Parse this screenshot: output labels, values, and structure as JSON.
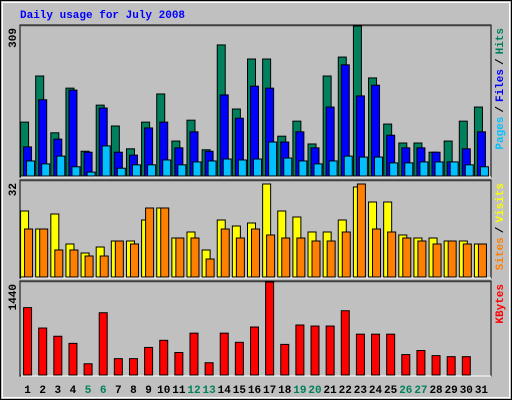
{
  "chart_data": {
    "type": "bar",
    "title": "Daily usage for July 2008",
    "categories": [
      "1",
      "2",
      "3",
      "4",
      "5",
      "6",
      "7",
      "8",
      "9",
      "10",
      "11",
      "12",
      "13",
      "14",
      "15",
      "16",
      "17",
      "18",
      "19",
      "20",
      "21",
      "22",
      "23",
      "24",
      "25",
      "26",
      "27",
      "28",
      "29",
      "30",
      "31"
    ],
    "category_colors": [
      "#000000",
      "#000000",
      "#000000",
      "#000000",
      "#00805c",
      "#00805c",
      "#000000",
      "#000000",
      "#000000",
      "#000000",
      "#000000",
      "#00805c",
      "#00805c",
      "#000000",
      "#000000",
      "#000000",
      "#000000",
      "#000000",
      "#00805c",
      "#00805c",
      "#000000",
      "#000000",
      "#000000",
      "#000000",
      "#000000",
      "#00805c",
      "#00805c",
      "#000000",
      "#000000",
      "#000000",
      "#000000"
    ],
    "panels": [
      {
        "ylim": [
          0,
          309
        ],
        "yticks": [
          309
        ],
        "label_separator": "/",
        "series": [
          {
            "name": "Hits",
            "color": "#00805c",
            "values": [
              111,
              206,
              89,
              181,
              51,
              146,
              103,
              56,
              111,
              169,
              72,
              115,
              54,
              270,
              138,
              241,
              241,
              82,
              113,
              66,
              206,
              245,
              309,
              202,
              107,
              68,
              68,
              49,
              72,
              113,
              142
            ]
          },
          {
            "name": "Files",
            "color": "#0000ff",
            "values": [
              60,
              157,
              76,
              177,
              49,
              140,
              49,
              43,
              99,
              111,
              58,
              91,
              51,
              167,
              119,
              185,
              181,
              70,
              91,
              58,
              142,
              229,
              165,
              187,
              84,
              58,
              58,
              49,
              29,
              56,
              91
            ]
          },
          {
            "name": "Pages",
            "color": "#00c0ff",
            "values": [
              31,
              25,
              41,
              19,
              8,
              62,
              16,
              23,
              23,
              33,
              23,
              29,
              31,
              35,
              33,
              35,
              70,
              37,
              31,
              25,
              31,
              41,
              39,
              39,
              27,
              27,
              29,
              29,
              29,
              23,
              19
            ]
          }
        ]
      },
      {
        "ylim": [
          0,
          32
        ],
        "yticks": [
          32
        ],
        "label_separator": "/",
        "series": [
          {
            "name": "Visits",
            "color": "#ffff00",
            "values": [
              22,
              16,
              21,
              11,
              8,
              10,
              12,
              12,
              19,
              23,
              13,
              15,
              9,
              19,
              17,
              18,
              31,
              22,
              20,
              15,
              15,
              19,
              30,
              25,
              25,
              14,
              13,
              13,
              12,
              12,
              11
            ]
          },
          {
            "name": "Sites",
            "color": "#ff8000",
            "values": [
              16,
              16,
              9,
              9,
              7,
              7,
              12,
              11,
              23,
              23,
              13,
              13,
              6,
              16,
              13,
              16,
              14,
              13,
              13,
              12,
              12,
              15,
              31,
              16,
              15,
              13,
              12,
              11,
              12,
              11,
              11
            ]
          }
        ]
      },
      {
        "ylim": [
          0,
          1440
        ],
        "yticks": [
          1440
        ],
        "label_separator": "/",
        "series": [
          {
            "name": "KBytes",
            "color": "#ff0000",
            "values": [
              1043,
              727,
              600,
              490,
              174,
              964,
              253,
              253,
              427,
              537,
              348,
              648,
              190,
              648,
              506,
              743,
              1440,
              474,
              774,
              758,
              758,
              995,
              632,
              632,
              632,
              316,
              379,
              300,
              284,
              284,
              0
            ]
          }
        ]
      }
    ]
  }
}
